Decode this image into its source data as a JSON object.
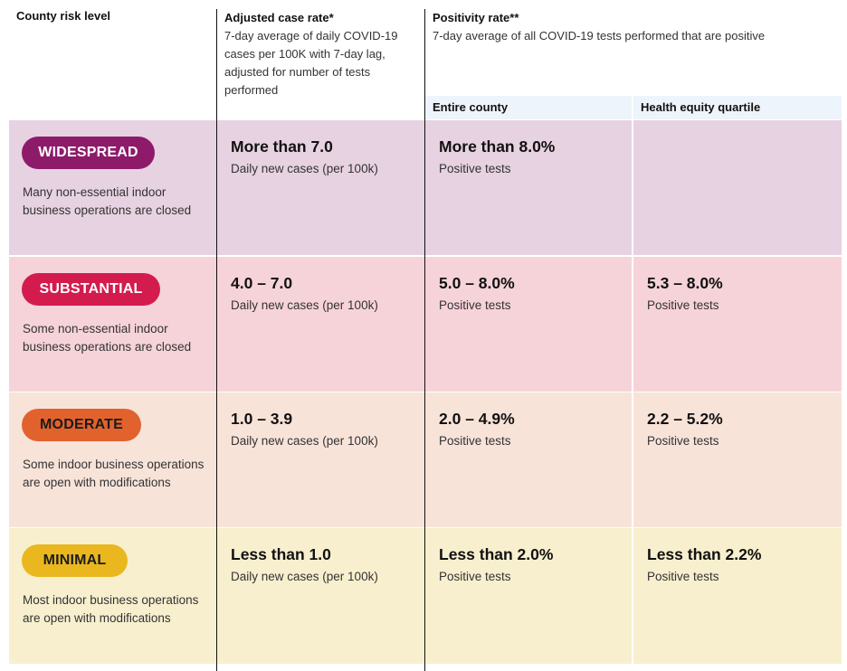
{
  "header": {
    "risk_level": "County risk level",
    "case_rate_title": "Adjusted case rate*",
    "case_rate_desc": "7-day average of daily COVID-19 cases per 100K with 7-day lag, adjusted for number of tests performed",
    "positivity_title": "Positivity rate**",
    "positivity_desc": "7-day average of all COVID-19 tests performed that are positive",
    "entire_county": "Entire county",
    "health_equity": "Health equity quartile"
  },
  "rows": [
    {
      "tier": "WIDESPREAD",
      "tier_color": "#8e1a6a",
      "description": "Many non-essential indoor business operations are closed",
      "case_value": "More than 7.0",
      "case_label": "Daily new cases (per 100k)",
      "county_value": "More than 8.0%",
      "county_label": "Positive tests",
      "equity_value": "",
      "equity_label": ""
    },
    {
      "tier": "SUBSTANTIAL",
      "tier_color": "#d41b4e",
      "description": "Some non-essential indoor business operations are closed",
      "case_value": "4.0 – 7.0",
      "case_label": "Daily new cases (per 100k)",
      "county_value": "5.0 – 8.0%",
      "county_label": "Positive tests",
      "equity_value": "5.3 – 8.0%",
      "equity_label": "Positive tests"
    },
    {
      "tier": "MODERATE",
      "tier_color": "#e2622d",
      "description": "Some indoor business operations are open with modifications",
      "case_value": "1.0 – 3.9",
      "case_label": "Daily new cases (per 100k)",
      "county_value": "2.0 – 4.9%",
      "county_label": "Positive tests",
      "equity_value": "2.2 – 5.2%",
      "equity_label": "Positive tests"
    },
    {
      "tier": "MINIMAL",
      "tier_color": "#eab71f",
      "description": "Most indoor business operations are open with modifications",
      "case_value": "Less than 1.0",
      "case_label": "Daily new cases (per 100k)",
      "county_value": "Less than 2.0%",
      "county_label": "Positive tests",
      "equity_value": "Less than 2.2%",
      "equity_label": "Positive tests"
    }
  ]
}
